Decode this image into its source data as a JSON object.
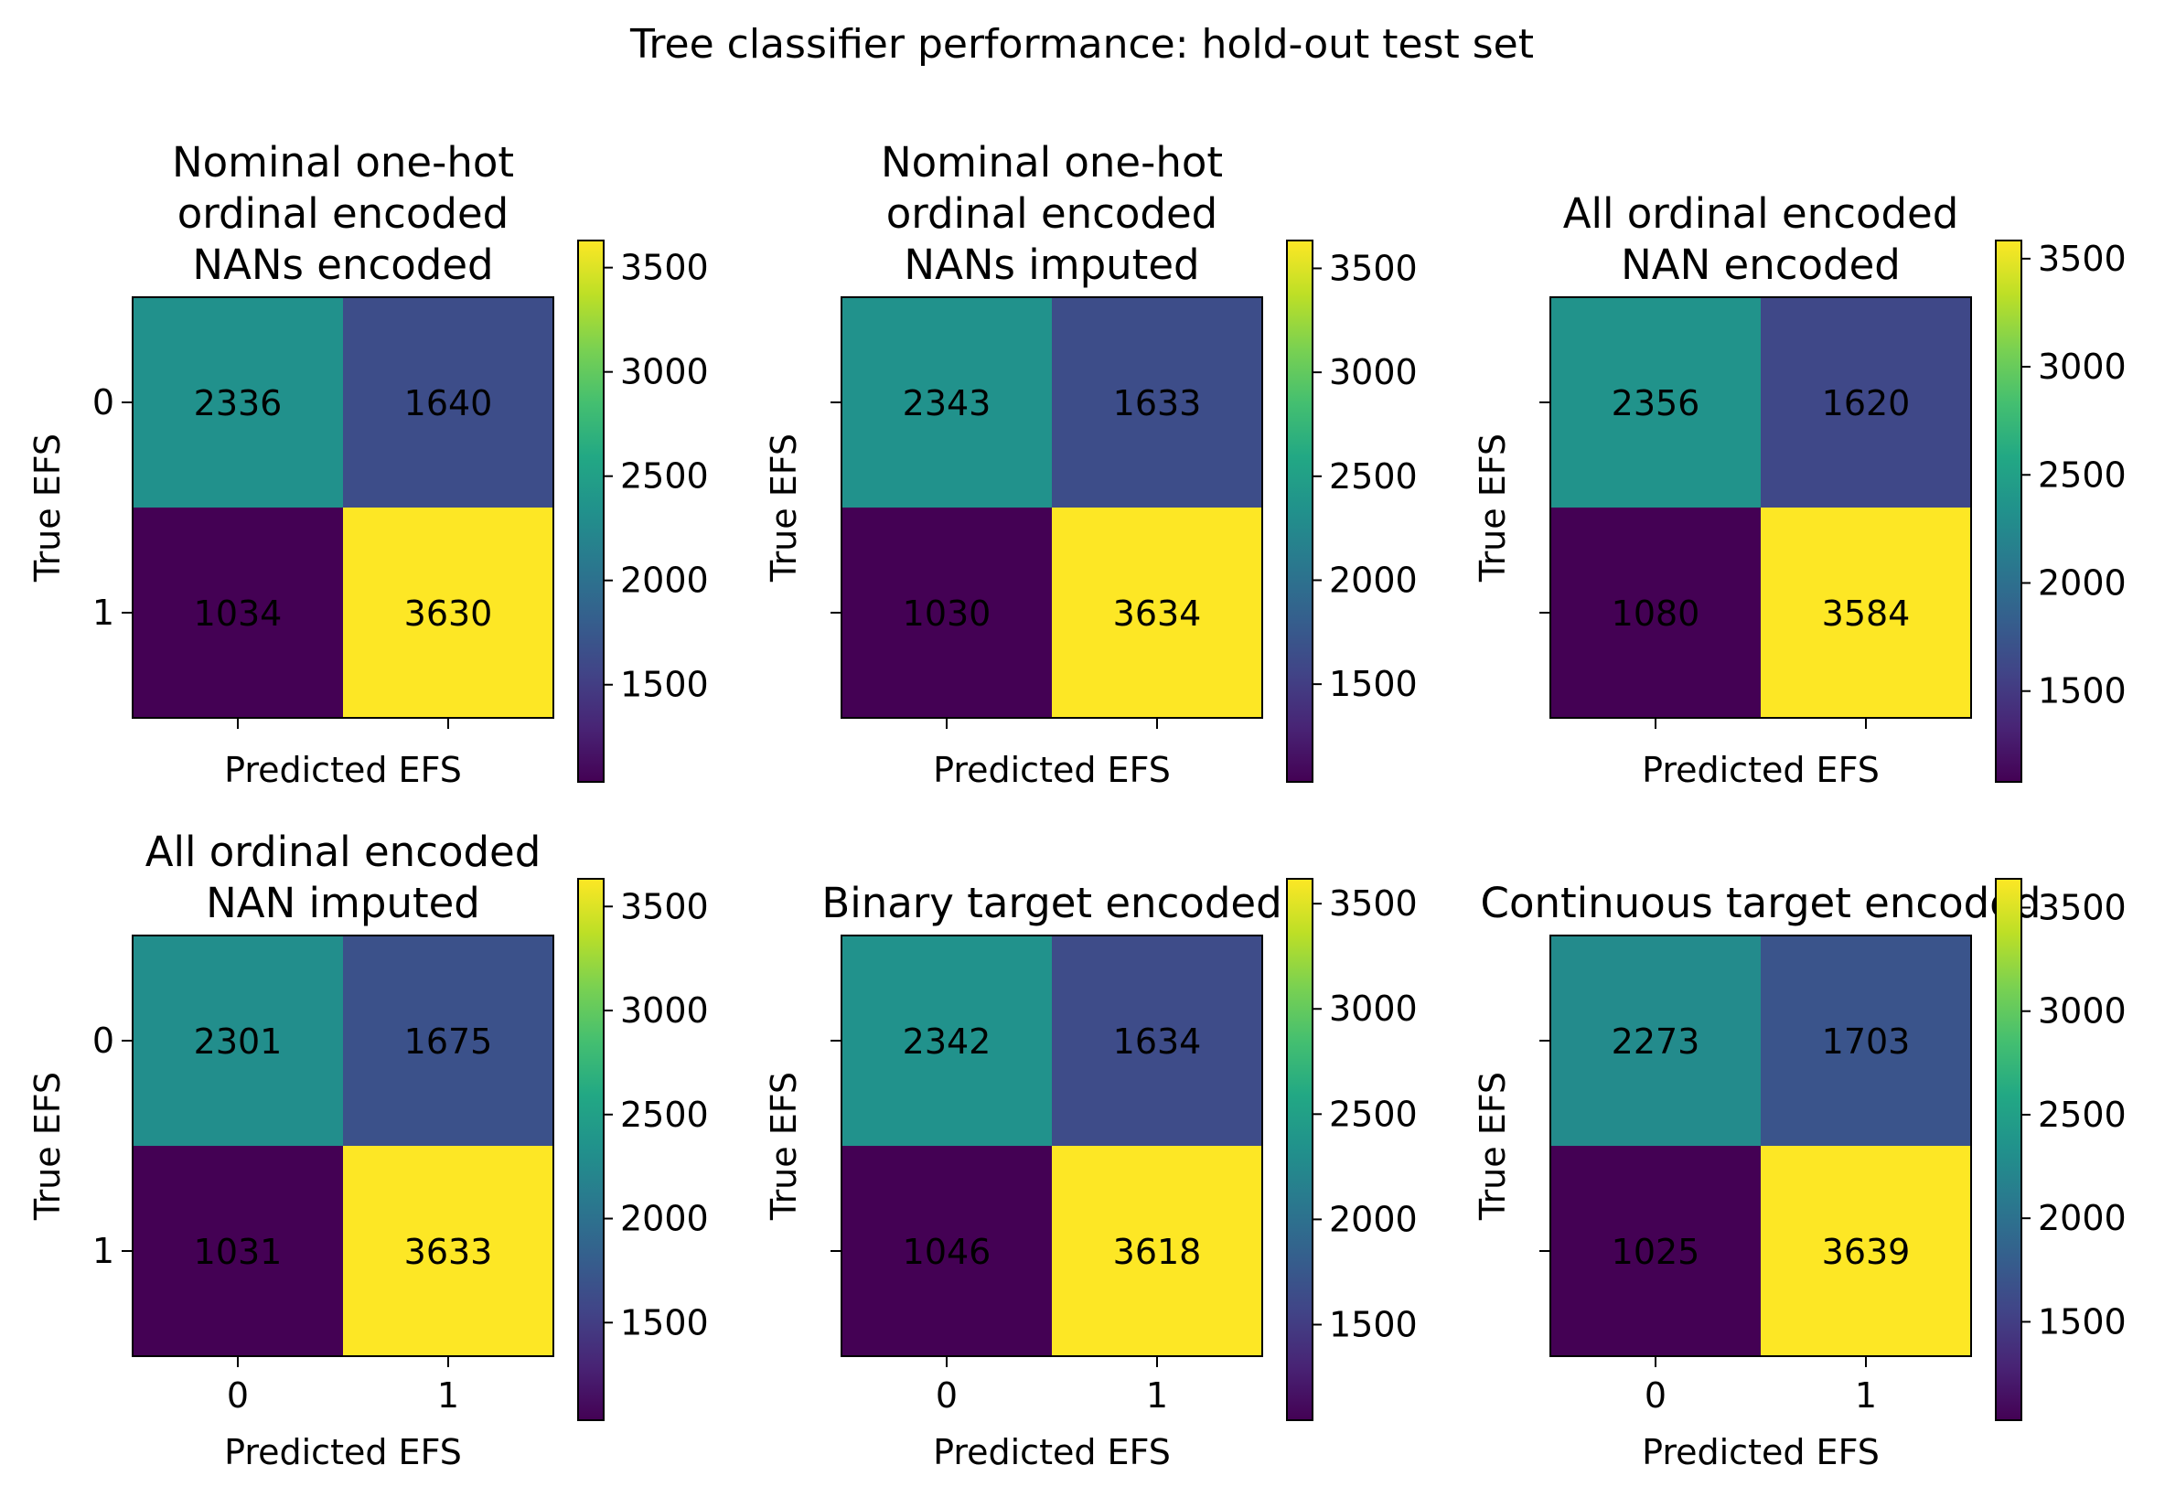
{
  "suptitle": "Tree classifier performance: hold-out test set",
  "colormap": "viridis",
  "chart_data": [
    {
      "type": "heatmap",
      "title": [
        "Nominal one-hot",
        "ordinal encoded",
        "NANs encoded"
      ],
      "xlabel": "Predicted EFS",
      "ylabel": "True EFS",
      "x_categories": [
        "0",
        "1"
      ],
      "y_categories": [
        "0",
        "1"
      ],
      "show_x_ticklabels": false,
      "show_y_ticklabels": true,
      "matrix": [
        [
          2336,
          1640
        ],
        [
          1034,
          3630
        ]
      ],
      "colorbar": {
        "min": 1034,
        "max": 3630,
        "ticks": [
          1500,
          2000,
          2500,
          3000,
          3500
        ]
      }
    },
    {
      "type": "heatmap",
      "title": [
        "Nominal one-hot",
        "ordinal encoded",
        "NANs imputed"
      ],
      "xlabel": "Predicted EFS",
      "ylabel": "True EFS",
      "x_categories": [
        "0",
        "1"
      ],
      "y_categories": [
        "0",
        "1"
      ],
      "show_x_ticklabels": false,
      "show_y_ticklabels": false,
      "matrix": [
        [
          2343,
          1633
        ],
        [
          1030,
          3634
        ]
      ],
      "colorbar": {
        "min": 1030,
        "max": 3634,
        "ticks": [
          1500,
          2000,
          2500,
          3000,
          3500
        ]
      }
    },
    {
      "type": "heatmap",
      "title": [
        "All ordinal encoded",
        "NAN encoded"
      ],
      "xlabel": "Predicted EFS",
      "ylabel": "True EFS",
      "x_categories": [
        "0",
        "1"
      ],
      "y_categories": [
        "0",
        "1"
      ],
      "show_x_ticklabels": false,
      "show_y_ticklabels": false,
      "matrix": [
        [
          2356,
          1620
        ],
        [
          1080,
          3584
        ]
      ],
      "colorbar": {
        "min": 1080,
        "max": 3584,
        "ticks": [
          1500,
          2000,
          2500,
          3000,
          3500
        ]
      }
    },
    {
      "type": "heatmap",
      "title": [
        "All ordinal encoded",
        "NAN imputed"
      ],
      "xlabel": "Predicted EFS",
      "ylabel": "True EFS",
      "x_categories": [
        "0",
        "1"
      ],
      "y_categories": [
        "0",
        "1"
      ],
      "show_x_ticklabels": true,
      "show_y_ticklabels": true,
      "matrix": [
        [
          2301,
          1675
        ],
        [
          1031,
          3633
        ]
      ],
      "colorbar": {
        "min": 1031,
        "max": 3633,
        "ticks": [
          1500,
          2000,
          2500,
          3000,
          3500
        ]
      }
    },
    {
      "type": "heatmap",
      "title": [
        "Binary target encoded"
      ],
      "xlabel": "Predicted EFS",
      "ylabel": "True EFS",
      "x_categories": [
        "0",
        "1"
      ],
      "y_categories": [
        "0",
        "1"
      ],
      "show_x_ticklabels": true,
      "show_y_ticklabels": false,
      "matrix": [
        [
          2342,
          1634
        ],
        [
          1046,
          3618
        ]
      ],
      "colorbar": {
        "min": 1046,
        "max": 3618,
        "ticks": [
          1500,
          2000,
          2500,
          3000,
          3500
        ]
      }
    },
    {
      "type": "heatmap",
      "title": [
        "Continuous target encoded"
      ],
      "xlabel": "Predicted EFS",
      "ylabel": "True EFS",
      "x_categories": [
        "0",
        "1"
      ],
      "y_categories": [
        "0",
        "1"
      ],
      "show_x_ticklabels": true,
      "show_y_ticklabels": false,
      "matrix": [
        [
          2273,
          1703
        ],
        [
          1025,
          3639
        ]
      ],
      "colorbar": {
        "min": 1025,
        "max": 3639,
        "ticks": [
          1500,
          2000,
          2500,
          3000,
          3500
        ]
      }
    }
  ]
}
